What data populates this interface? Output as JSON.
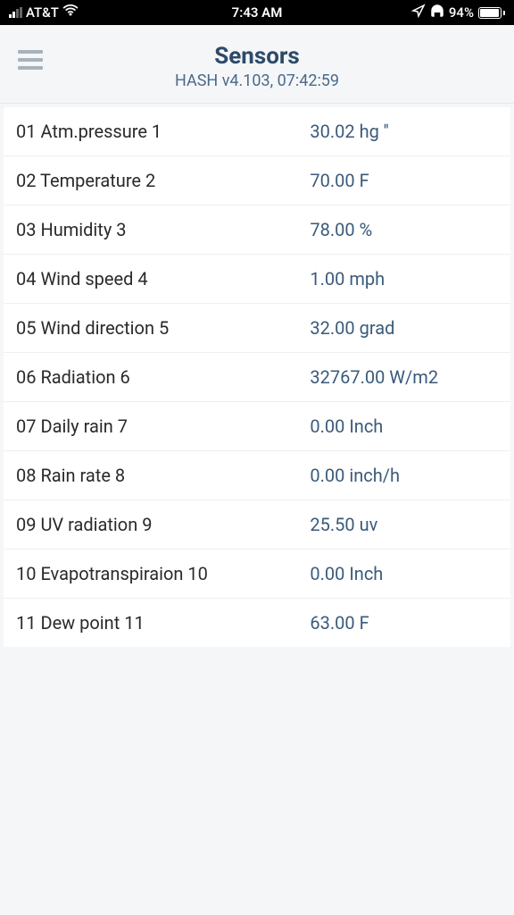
{
  "status_bar": {
    "carrier": "AT&T",
    "time": "7:43 AM",
    "battery_pct": "94%"
  },
  "header": {
    "title": "Sensors",
    "subtitle": "HASH v4.103, 07:42:59"
  },
  "sensors": [
    {
      "label": "01 Atm.pressure 1",
      "value": "30.02 hg ''"
    },
    {
      "label": "02 Temperature 2",
      "value": "70.00 F"
    },
    {
      "label": "03 Humidity 3",
      "value": "78.00 %"
    },
    {
      "label": "04 Wind speed 4",
      "value": "1.00 mph"
    },
    {
      "label": "05 Wind direction 5",
      "value": "32.00 grad"
    },
    {
      "label": "06 Radiation 6",
      "value": "32767.00 W/m2"
    },
    {
      "label": "07 Daily rain 7",
      "value": "0.00 Inch"
    },
    {
      "label": "08 Rain rate 8",
      "value": "0.00 inch/h"
    },
    {
      "label": "09 UV radiation 9",
      "value": "25.50 uv"
    },
    {
      "label": "10 Evapotranspiraion 10",
      "value": "0.00 Inch"
    },
    {
      "label": "11 Dew point 11",
      "value": "63.00 F"
    }
  ],
  "colors": {
    "title_color": "#2d4a68",
    "subtitle_color": "#4a6a8a",
    "value_color": "#3a5a7a",
    "label_color": "#2a2a2a",
    "bg": "#f5f6f8",
    "row_border": "#eeeff1"
  }
}
